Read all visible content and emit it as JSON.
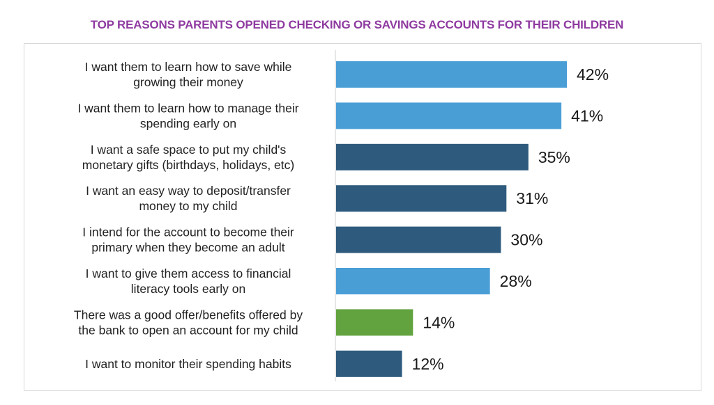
{
  "chart_data": {
    "type": "bar",
    "orientation": "horizontal",
    "title": "TOP REASONS PARENTS OPENED CHECKING OR SAVINGS ACCOUNTS FOR THEIR CHILDREN",
    "xlim": [
      0,
      50
    ],
    "grid": false,
    "categories": [
      [
        "I want them to learn how to save while",
        "growing their money"
      ],
      [
        "I want them to learn how to manage their",
        "spending early on"
      ],
      [
        "I want a safe space to put my child's",
        "monetary gifts (birthdays, holidays, etc)"
      ],
      [
        "I want an easy way to deposit/transfer",
        "money to my child"
      ],
      [
        "I intend for the account to become their",
        "primary when they become an adult"
      ],
      [
        "I want to give them access to financial",
        "literacy tools early on"
      ],
      [
        "There was a good offer/benefits offered by",
        "the bank to open an account for my child"
      ],
      [
        "I want to monitor their spending habits"
      ]
    ],
    "values": [
      42,
      41,
      35,
      31,
      30,
      28,
      14,
      12
    ],
    "value_labels": [
      "42%",
      "41%",
      "35%",
      "31%",
      "30%",
      "28%",
      "14%",
      "12%"
    ],
    "bar_colors": [
      "#4a9ed6",
      "#4a9ed6",
      "#2e5b7d",
      "#2e5b7d",
      "#2e5b7d",
      "#4a9ed6",
      "#62a33f",
      "#2e5b7d"
    ],
    "title_color": "#8e3aa0"
  }
}
